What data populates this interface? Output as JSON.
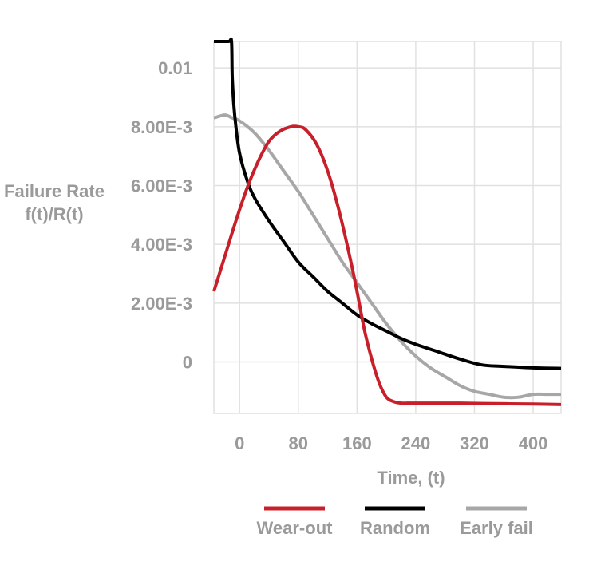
{
  "chart_data": {
    "type": "line",
    "xlabel": "Time, (t)",
    "ylabel_lines": [
      "Failure Rate",
      "f(t)/R(t)"
    ],
    "xlim": [
      -35,
      438
    ],
    "ylim": [
      -0.00175,
      0.0109
    ],
    "grid": true,
    "legend_position": "bottom",
    "x_ticks": [
      {
        "value": 0,
        "label": "0"
      },
      {
        "value": 80,
        "label": "80"
      },
      {
        "value": 160,
        "label": "160"
      },
      {
        "value": 240,
        "label": "240"
      },
      {
        "value": 320,
        "label": "320"
      },
      {
        "value": 400,
        "label": "400"
      }
    ],
    "y_ticks": [
      {
        "value": 0,
        "label": "0"
      },
      {
        "value": 0.002,
        "label": "2.00E-3"
      },
      {
        "value": 0.004,
        "label": "4.00E-3"
      },
      {
        "value": 0.006,
        "label": "6.00E-3"
      },
      {
        "value": 0.008,
        "label": "8.00E-3"
      },
      {
        "value": 0.01,
        "label": "0.01"
      }
    ],
    "series": [
      {
        "name": "Wear-out",
        "color": "#c8202a",
        "x": [
          -35,
          -20,
          -5,
          10,
          25,
          40,
          55,
          70,
          80,
          90,
          105,
          120,
          135,
          150,
          160,
          170,
          180,
          190,
          200,
          210,
          220,
          235,
          260,
          300,
          350,
          400,
          438
        ],
        "y": [
          0.0024,
          0.0036,
          0.0048,
          0.0059,
          0.0068,
          0.0075,
          0.00785,
          0.008,
          0.008,
          0.0079,
          0.0074,
          0.0065,
          0.0052,
          0.0036,
          0.0024,
          0.0011,
          0.0001,
          -0.0007,
          -0.0012,
          -0.00135,
          -0.0014,
          -0.0014,
          -0.0014,
          -0.0014,
          -0.00142,
          -0.00143,
          -0.00145
        ]
      },
      {
        "name": "Random",
        "color": "#000000",
        "x": [
          -35,
          -15,
          -11,
          -10,
          -8,
          -5,
          0,
          10,
          20,
          40,
          60,
          80,
          100,
          120,
          140,
          160,
          180,
          200,
          220,
          240,
          270,
          300,
          330,
          360,
          400,
          438
        ],
        "y": [
          0.0109,
          0.0109,
          0.0109,
          0.0097,
          0.0088,
          0.008,
          0.0071,
          0.0062,
          0.0056,
          0.0048,
          0.0041,
          0.0034,
          0.0029,
          0.0024,
          0.002,
          0.0016,
          0.0013,
          0.00105,
          0.0008,
          0.0006,
          0.00035,
          0.0001,
          -0.0001,
          -0.00015,
          -0.0002,
          -0.00022
        ]
      },
      {
        "name": "Early fail",
        "color": "#a7a7a7",
        "x": [
          -35,
          -20,
          -10,
          0,
          20,
          40,
          60,
          80,
          100,
          120,
          140,
          160,
          180,
          200,
          220,
          240,
          260,
          280,
          300,
          320,
          340,
          360,
          380,
          400,
          420,
          438
        ],
        "y": [
          0.0083,
          0.0084,
          0.0083,
          0.0082,
          0.0078,
          0.0072,
          0.0065,
          0.0058,
          0.005,
          0.0042,
          0.0034,
          0.0027,
          0.002,
          0.0013,
          0.0007,
          0.0002,
          -0.0002,
          -0.0005,
          -0.0008,
          -0.001,
          -0.0011,
          -0.0012,
          -0.0012,
          -0.0011,
          -0.0011,
          -0.0011
        ]
      }
    ]
  }
}
